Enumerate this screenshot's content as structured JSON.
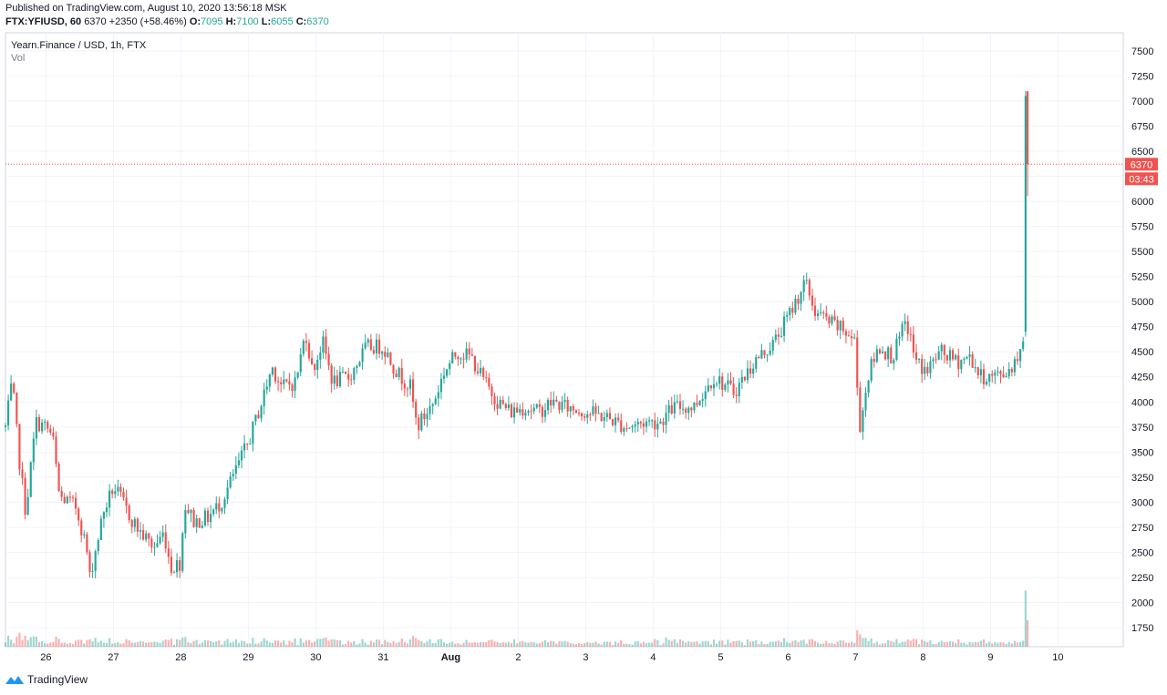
{
  "header": {
    "published": "Published on TradingView.com, August 10, 2020 13:56:18 MSK",
    "symbol": "FTX:YFIUSD, 60",
    "last": "6370",
    "change": "+2350 (+58.46%)",
    "o_label": "O:",
    "o_value": "7095",
    "h_label": "H:",
    "h_value": "7100",
    "l_label": "L:",
    "l_value": "6055",
    "c_label": "C:",
    "c_value": "6370"
  },
  "pane": {
    "title": "Yearn.Finance / USD, 1h, FTX",
    "indicator": "Vol"
  },
  "footer": {
    "brand": "TradingView"
  },
  "colors": {
    "up": "#26a69a",
    "down": "#ef5350",
    "price_tag": "#ef5350",
    "grid": "#f0f3fa",
    "axis_text": "#131722"
  },
  "chart_data": {
    "type": "candlestick",
    "title": "Yearn.Finance / USD, 1h, FTX",
    "interval": "1h",
    "y_ticks": [
      1750,
      2000,
      2250,
      2500,
      2750,
      3000,
      3250,
      3500,
      3750,
      4000,
      4250,
      4500,
      4750,
      5000,
      5250,
      5500,
      5750,
      6000,
      6250,
      6500,
      6750,
      7000,
      7250,
      7500
    ],
    "ylim": [
      1560,
      7680
    ],
    "x_ticks": [
      "26",
      "27",
      "28",
      "29",
      "30",
      "31",
      "Aug",
      "2",
      "3",
      "4",
      "5",
      "6",
      "7",
      "8",
      "9",
      "10"
    ],
    "x_start_day": 25.4,
    "last_price": 6370,
    "countdown": "03:43",
    "grid": true,
    "anchors": [
      [
        25.4,
        3750
      ],
      [
        25.5,
        4200
      ],
      [
        25.6,
        3450
      ],
      [
        25.7,
        2900
      ],
      [
        25.85,
        3800
      ],
      [
        26.0,
        3750
      ],
      [
        26.1,
        3650
      ],
      [
        26.2,
        3050
      ],
      [
        26.35,
        3000
      ],
      [
        26.45,
        2950
      ],
      [
        26.6,
        2550
      ],
      [
        26.65,
        2250
      ],
      [
        26.85,
        2900
      ],
      [
        27.0,
        3150
      ],
      [
        27.1,
        3050
      ],
      [
        27.25,
        2850
      ],
      [
        27.4,
        2700
      ],
      [
        27.6,
        2550
      ],
      [
        27.75,
        2700
      ],
      [
        27.85,
        2350
      ],
      [
        28.0,
        2400
      ],
      [
        28.05,
        3000
      ],
      [
        28.2,
        2800
      ],
      [
        28.4,
        2850
      ],
      [
        28.6,
        3000
      ],
      [
        28.8,
        3300
      ],
      [
        29.0,
        3600
      ],
      [
        29.2,
        4000
      ],
      [
        29.35,
        4350
      ],
      [
        29.5,
        4150
      ],
      [
        29.7,
        4200
      ],
      [
        29.85,
        4700
      ],
      [
        29.95,
        4300
      ],
      [
        30.1,
        4600
      ],
      [
        30.25,
        4200
      ],
      [
        30.5,
        4250
      ],
      [
        30.75,
        4550
      ],
      [
        31.0,
        4550
      ],
      [
        31.2,
        4300
      ],
      [
        31.4,
        4150
      ],
      [
        31.5,
        3750
      ],
      [
        31.75,
        4000
      ],
      [
        31.9,
        4300
      ],
      [
        32.1,
        4500
      ],
      [
        32.3,
        4450
      ],
      [
        32.5,
        4200
      ],
      [
        32.7,
        4000
      ],
      [
        32.9,
        3900
      ],
      [
        33.1,
        3950
      ],
      [
        33.3,
        3900
      ],
      [
        33.5,
        4000
      ],
      [
        33.7,
        3950
      ],
      [
        34.0,
        3900
      ],
      [
        34.3,
        3850
      ],
      [
        34.6,
        3750
      ],
      [
        34.9,
        3800
      ],
      [
        35.1,
        3800
      ],
      [
        35.3,
        3950
      ],
      [
        35.6,
        3950
      ],
      [
        35.9,
        4250
      ],
      [
        36.2,
        4100
      ],
      [
        36.5,
        4400
      ],
      [
        36.8,
        4600
      ],
      [
        37.0,
        4850
      ],
      [
        37.15,
        5050
      ],
      [
        37.25,
        5200
      ],
      [
        37.4,
        4900
      ],
      [
        37.6,
        4800
      ],
      [
        37.85,
        4700
      ],
      [
        38.0,
        4600
      ],
      [
        38.05,
        3700
      ],
      [
        38.2,
        4300
      ],
      [
        38.35,
        4550
      ],
      [
        38.55,
        4450
      ],
      [
        38.75,
        4800
      ],
      [
        38.9,
        4400
      ],
      [
        39.05,
        4300
      ],
      [
        39.25,
        4500
      ],
      [
        39.5,
        4400
      ],
      [
        39.7,
        4450
      ],
      [
        39.85,
        4250
      ],
      [
        40.05,
        4250
      ],
      [
        40.25,
        4300
      ],
      [
        40.4,
        4450
      ],
      [
        40.45,
        4600
      ],
      [
        40.5,
        4650
      ]
    ],
    "spike": [
      {
        "day": 40.52,
        "open": 4700,
        "high": 7100,
        "low": 4650,
        "close": 7050
      },
      {
        "day": 40.55,
        "open": 7095,
        "high": 7100,
        "low": 6055,
        "close": 6370
      }
    ]
  }
}
